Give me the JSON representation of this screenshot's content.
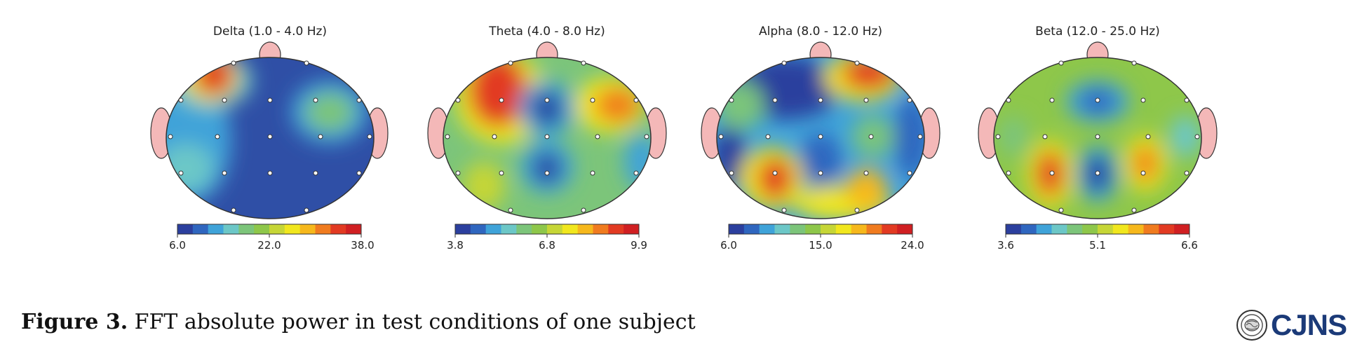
{
  "figure": {
    "maps": [
      {
        "title": "Delta (1.0 - 4.0 Hz)",
        "scale": [
          "6.0",
          "22.0",
          "38.0"
        ]
      },
      {
        "title": "Theta (4.0 - 8.0 Hz)",
        "scale": [
          "3.8",
          "6.8",
          "9.9"
        ]
      },
      {
        "title": "Alpha (8.0 - 12.0 Hz)",
        "scale": [
          "6.0",
          "15.0",
          "24.0"
        ]
      },
      {
        "title": "Beta (12.0 - 25.0 Hz)",
        "scale": [
          "3.6",
          "5.1",
          "6.6"
        ]
      }
    ],
    "colormap": [
      "#2b3f9e",
      "#2f66bf",
      "#3fa3d9",
      "#6cc7c7",
      "#7cc57a",
      "#8ec74a",
      "#c6d636",
      "#f1e71e",
      "#f6b81c",
      "#f07b1f",
      "#e23a22",
      "#d01f22"
    ]
  },
  "caption": {
    "label": "Figure 3.",
    "text": " FFT absolute power in test conditions of one subject"
  },
  "logo": {
    "text": "CJNS",
    "color": "#1b3a78"
  }
}
